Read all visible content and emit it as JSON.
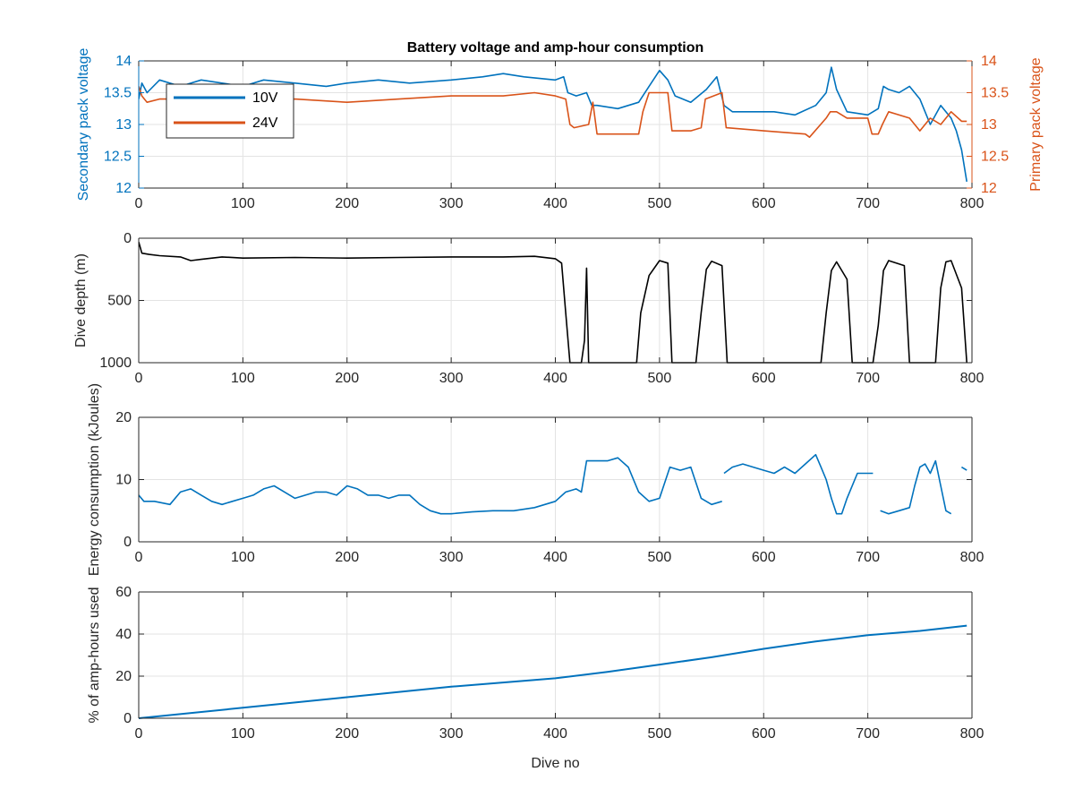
{
  "chart_data": [
    {
      "type": "line",
      "title": "Battery voltage and amp-hour consumption",
      "xlabel": "",
      "ylabel": "Secondary pack voltage",
      "ylabel_right": "Primary pack voltage",
      "xlim": [
        0,
        800
      ],
      "ylim": [
        12,
        14
      ],
      "ylim_right": [
        12,
        14
      ],
      "xticks": [
        0,
        100,
        200,
        300,
        400,
        500,
        600,
        700,
        800
      ],
      "yticks": [
        12,
        12.5,
        13,
        13.5,
        14
      ],
      "yticks_right": [
        12,
        12.5,
        13,
        13.5,
        14
      ],
      "grid": true,
      "legend_position": "top-left",
      "series": [
        {
          "name": "10V",
          "color": "#0072BD",
          "axis": "left",
          "x": [
            0,
            3,
            8,
            20,
            40,
            60,
            80,
            100,
            120,
            150,
            180,
            200,
            230,
            260,
            300,
            330,
            350,
            370,
            400,
            408,
            412,
            420,
            430,
            435,
            440,
            460,
            480,
            490,
            500,
            508,
            515,
            530,
            545,
            555,
            562,
            570,
            590,
            610,
            630,
            650,
            660,
            665,
            670,
            680,
            700,
            710,
            715,
            720,
            730,
            740,
            750,
            760,
            770,
            780,
            785,
            790,
            795
          ],
          "y": [
            13.4,
            13.65,
            13.5,
            13.7,
            13.6,
            13.7,
            13.65,
            13.6,
            13.7,
            13.65,
            13.6,
            13.65,
            13.7,
            13.65,
            13.7,
            13.75,
            13.8,
            13.75,
            13.7,
            13.75,
            13.5,
            13.45,
            13.5,
            13.3,
            13.3,
            13.25,
            13.35,
            13.6,
            13.85,
            13.7,
            13.45,
            13.35,
            13.55,
            13.75,
            13.3,
            13.2,
            13.2,
            13.2,
            13.15,
            13.3,
            13.5,
            13.9,
            13.55,
            13.2,
            13.15,
            13.25,
            13.6,
            13.55,
            13.5,
            13.6,
            13.4,
            13.0,
            13.3,
            13.1,
            12.9,
            12.6,
            12.1
          ]
        },
        {
          "name": "24V",
          "color": "#D95319",
          "axis": "right",
          "x": [
            0,
            3,
            8,
            20,
            50,
            80,
            100,
            150,
            200,
            250,
            300,
            350,
            380,
            400,
            410,
            414,
            418,
            432,
            436,
            440,
            480,
            484,
            490,
            508,
            512,
            530,
            540,
            544,
            560,
            564,
            600,
            640,
            644,
            660,
            664,
            670,
            680,
            700,
            704,
            710,
            714,
            720,
            740,
            750,
            760,
            770,
            780,
            790,
            795
          ],
          "y": [
            13.6,
            13.45,
            13.35,
            13.4,
            13.4,
            13.35,
            13.35,
            13.4,
            13.35,
            13.4,
            13.45,
            13.45,
            13.5,
            13.45,
            13.4,
            13.0,
            12.95,
            13.0,
            13.35,
            12.85,
            12.85,
            13.2,
            13.5,
            13.5,
            12.9,
            12.9,
            12.95,
            13.4,
            13.5,
            12.95,
            12.9,
            12.85,
            12.8,
            13.1,
            13.2,
            13.2,
            13.1,
            13.1,
            12.85,
            12.85,
            13.0,
            13.2,
            13.1,
            12.9,
            13.1,
            13.0,
            13.2,
            13.05,
            13.05
          ]
        }
      ]
    },
    {
      "type": "line",
      "title": "",
      "xlabel": "",
      "ylabel": "Dive depth (m)",
      "xlim": [
        0,
        800
      ],
      "ylim": [
        0,
        1000
      ],
      "y_reversed": true,
      "xticks": [
        0,
        100,
        200,
        300,
        400,
        500,
        600,
        700,
        800
      ],
      "yticks": [
        0,
        500,
        1000
      ],
      "grid": true,
      "series": [
        {
          "name": "",
          "color": "#000000",
          "x": [
            0,
            3,
            10,
            20,
            40,
            50,
            60,
            80,
            100,
            150,
            200,
            250,
            300,
            350,
            380,
            400,
            406,
            410,
            414,
            425,
            428,
            430,
            432,
            436,
            478,
            482,
            490,
            500,
            508,
            512,
            535,
            540,
            545,
            550,
            560,
            565,
            655,
            660,
            665,
            670,
            680,
            685,
            705,
            710,
            715,
            720,
            735,
            740,
            765,
            770,
            775,
            780,
            790,
            795
          ],
          "y": [
            30,
            120,
            130,
            140,
            150,
            180,
            170,
            150,
            160,
            155,
            160,
            155,
            150,
            150,
            145,
            165,
            200,
            600,
            1000,
            1000,
            820,
            240,
            1000,
            1000,
            1000,
            600,
            300,
            180,
            200,
            1000,
            1000,
            600,
            250,
            185,
            220,
            1000,
            1000,
            600,
            260,
            190,
            330,
            1000,
            1000,
            700,
            260,
            180,
            220,
            1000,
            1000,
            400,
            190,
            180,
            400,
            1000
          ]
        }
      ]
    },
    {
      "type": "line",
      "title": "",
      "xlabel": "",
      "ylabel": "Energy consumption (kJoules)",
      "xlim": [
        0,
        800
      ],
      "ylim": [
        0,
        20
      ],
      "xticks": [
        0,
        100,
        200,
        300,
        400,
        500,
        600,
        700,
        800
      ],
      "yticks": [
        0,
        10,
        20
      ],
      "grid": true,
      "series": [
        {
          "name": "",
          "color": "#0072BD",
          "segments": [
            {
              "x": [
                0,
                5,
                15,
                30,
                40,
                50,
                60,
                70,
                80,
                90,
                100,
                110,
                120,
                130,
                140,
                150,
                160,
                170,
                180,
                190,
                200,
                210,
                220,
                230,
                240,
                250,
                260,
                270,
                280,
                290,
                300,
                320,
                340,
                360,
                380,
                400,
                410,
                420,
                425,
                430,
                440,
                450,
                460,
                470,
                480,
                490,
                500,
                510,
                520,
                530,
                540,
                550,
                560
              ],
              "y": [
                7.5,
                6.5,
                6.5,
                6.0,
                8.0,
                8.5,
                7.5,
                6.5,
                6.0,
                6.5,
                7.0,
                7.5,
                8.5,
                9.0,
                8.0,
                7.0,
                7.5,
                8.0,
                8.0,
                7.5,
                9.0,
                8.5,
                7.5,
                7.5,
                7.0,
                7.5,
                7.5,
                6.0,
                5.0,
                4.5,
                4.5,
                4.8,
                5.0,
                5.0,
                5.5,
                6.5,
                8.0,
                8.5,
                8.0,
                13.0,
                13.0,
                13.0,
                13.5,
                12.0,
                8.0,
                6.5,
                7.0,
                12.0,
                11.5,
                12.0,
                7.0,
                6.0,
                6.5
              ]
            },
            {
              "x": [
                562,
                570,
                580,
                590,
                600,
                610,
                620,
                630,
                640,
                650,
                655,
                660,
                665,
                670,
                675,
                680,
                690,
                700,
                705
              ],
              "y": [
                11.0,
                12.0,
                12.5,
                12.0,
                11.5,
                11.0,
                12.0,
                11.0,
                12.5,
                14.0,
                12.0,
                10.0,
                7.0,
                4.5,
                4.5,
                7.0,
                11.0,
                11.0,
                11.0
              ]
            },
            {
              "x": [
                712,
                720,
                730,
                740,
                745,
                750,
                755,
                760,
                765,
                770,
                775,
                780
              ],
              "y": [
                5.0,
                4.5,
                5.0,
                5.5,
                9.0,
                12.0,
                12.5,
                11.0,
                13.0,
                9.0,
                5.0,
                4.5
              ]
            },
            {
              "x": [
                790,
                795
              ],
              "y": [
                12.0,
                11.5
              ]
            }
          ]
        }
      ]
    },
    {
      "type": "line",
      "title": "",
      "xlabel": "Dive no",
      "ylabel": "% of amp-hours used",
      "xlim": [
        0,
        800
      ],
      "ylim": [
        0,
        60
      ],
      "xticks": [
        0,
        100,
        200,
        300,
        400,
        500,
        600,
        700,
        800
      ],
      "yticks": [
        0,
        20,
        40,
        60
      ],
      "grid": true,
      "series": [
        {
          "name": "",
          "color": "#0072BD",
          "x": [
            0,
            100,
            200,
            300,
            400,
            450,
            500,
            550,
            600,
            650,
            700,
            750,
            795
          ],
          "y": [
            0,
            5,
            10,
            15,
            19,
            22,
            25.5,
            29,
            33,
            36.5,
            39.5,
            41.5,
            44
          ]
        }
      ]
    }
  ]
}
